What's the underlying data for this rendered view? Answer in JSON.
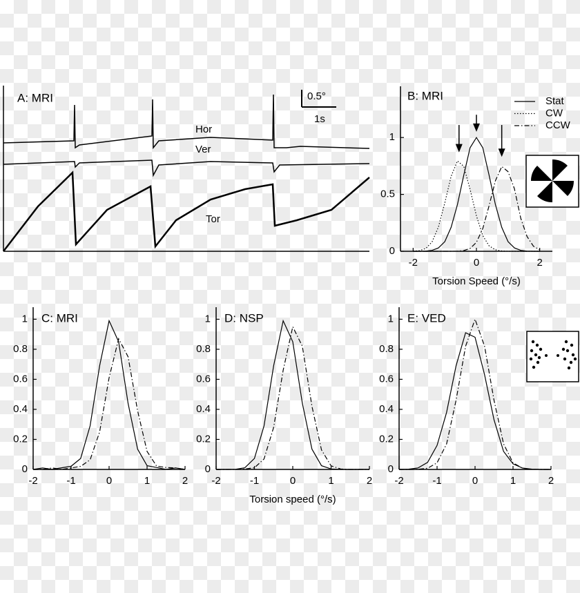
{
  "chart_data": [
    {
      "type": "line",
      "title": "A: MRI",
      "xlim": [
        0,
        10.6
      ],
      "ylim": [
        0,
        4.8
      ],
      "scale_bar": {
        "x": 1,
        "x_label": "1s",
        "y": 0.5,
        "y_label": "0.5°"
      },
      "series": [
        {
          "name": "Hor",
          "color": "#000",
          "dash": "solid",
          "linewidth": 1.5,
          "x": [
            0,
            2.04,
            2.06,
            2.08,
            2.2,
            4.3,
            4.32,
            4.34,
            4.5,
            6.0,
            7.8,
            7.82,
            7.84,
            8.2,
            8.6,
            10.6
          ],
          "values": [
            3.14,
            3.2,
            4.24,
            3.0,
            3.08,
            3.34,
            4.4,
            3.0,
            3.2,
            3.3,
            3.22,
            4.54,
            3.0,
            3.0,
            3.04,
            2.98
          ]
        },
        {
          "name": "Ver",
          "color": "#000",
          "dash": "solid",
          "linewidth": 1.5,
          "x": [
            0,
            2.06,
            2.08,
            2.2,
            4.3,
            4.34,
            4.5,
            6.0,
            7.8,
            7.84,
            8.0,
            10.6
          ],
          "values": [
            2.52,
            2.6,
            2.44,
            2.56,
            2.64,
            2.2,
            2.5,
            2.6,
            2.56,
            2.3,
            2.5,
            2.54
          ]
        },
        {
          "name": "Tor",
          "color": "#000",
          "dash": "solid",
          "linewidth": 2.5,
          "x": [
            0,
            1.0,
            2.0,
            2.1,
            3.0,
            4.26,
            4.4,
            5.0,
            6.0,
            7.0,
            7.8,
            7.86,
            8.5,
            9.5,
            10.6
          ],
          "values": [
            0,
            1.3,
            2.28,
            0.2,
            1.2,
            1.88,
            0.14,
            0.9,
            1.5,
            1.8,
            1.94,
            0.74,
            0.9,
            1.2,
            2.14
          ]
        }
      ]
    },
    {
      "type": "line",
      "title": "B: MRI",
      "xlabel": "Torsion Speed (°/s)",
      "xlim": [
        -2.4,
        2.4
      ],
      "ylim": [
        0,
        1.45
      ],
      "xticks": [
        -2,
        0,
        2
      ],
      "yticks": [
        0,
        0.5,
        1
      ],
      "legend": "top-right",
      "arrows": [
        {
          "x": -0.55,
          "y_top": 1.11,
          "y_tip": 0.87
        },
        {
          "x": 0,
          "y_top": 1.2,
          "y_tip": 1.05
        },
        {
          "x": 0.8,
          "y_top": 1.11,
          "y_tip": 0.83
        }
      ],
      "x": [
        -2,
        -1.8,
        -1.6,
        -1.4,
        -1.2,
        -1.0,
        -0.8,
        -0.6,
        -0.4,
        -0.2,
        0,
        0.2,
        0.4,
        0.6,
        0.8,
        1.0,
        1.2,
        1.4,
        1.6,
        1.8,
        2.0
      ],
      "series": [
        {
          "name": "Stat",
          "color": "#000",
          "dash": "solid",
          "linewidth": 1.2,
          "values": [
            0,
            0,
            0.002,
            0.008,
            0.03,
            0.085,
            0.21,
            0.41,
            0.67,
            0.91,
            1,
            0.91,
            0.67,
            0.41,
            0.21,
            0.085,
            0.03,
            0.008,
            0.002,
            0,
            0
          ]
        },
        {
          "name": "CW",
          "color": "#000",
          "dash": "dotted",
          "linewidth": 1.2,
          "values": [
            0.001,
            0.006,
            0.025,
            0.083,
            0.214,
            0.425,
            0.658,
            0.794,
            0.746,
            0.545,
            0.311,
            0.138,
            0.048,
            0.013,
            0.003,
            0,
            0,
            0,
            0,
            0,
            0
          ]
        },
        {
          "name": "CCW",
          "color": "#000",
          "dash": "dashdot",
          "linewidth": 1.2,
          "values": [
            0,
            0,
            0,
            0,
            0,
            0,
            0,
            0.001,
            0.006,
            0.024,
            0.078,
            0.2,
            0.4,
            0.62,
            0.745,
            0.7,
            0.55,
            0.29,
            0.13,
            0.045,
            0.012
          ]
        }
      ]
    },
    {
      "type": "line",
      "title": "C: MRI",
      "xlim": [
        -2,
        2
      ],
      "ylim": [
        0,
        1.08
      ],
      "xticks": [
        -2,
        -1,
        0,
        1,
        2
      ],
      "yticks": [
        0,
        0.2,
        0.4,
        0.6,
        0.8,
        1
      ],
      "x": [
        -2,
        -1.75,
        -1.5,
        -1.25,
        -1,
        -0.75,
        -0.5,
        -0.25,
        0,
        0.25,
        0.5,
        0.75,
        1,
        1.25,
        1.5,
        1.75,
        2
      ],
      "series": [
        {
          "color": "#000",
          "dash": "solid",
          "linewidth": 1.2,
          "values": [
            0,
            0.01,
            0,
            0.011,
            0.021,
            0.073,
            0.29,
            0.69,
            0.99,
            0.85,
            0.44,
            0.135,
            0.025,
            0.013,
            0,
            0.01,
            0
          ]
        },
        {
          "color": "#000",
          "dash": "dashdot",
          "linewidth": 1.2,
          "values": [
            0,
            0,
            0.01,
            0,
            0.01,
            0.02,
            0.064,
            0.25,
            0.61,
            0.87,
            0.75,
            0.39,
            0.12,
            0.022,
            0.013,
            0.01,
            0
          ]
        }
      ]
    },
    {
      "type": "line",
      "title": "D: NSP",
      "xlabel": "Torsion speed (°/s)",
      "xlim": [
        -2,
        2
      ],
      "ylim": [
        0,
        1.08
      ],
      "xticks": [
        -2,
        -1,
        0,
        1,
        2
      ],
      "yticks": [
        0,
        0.2,
        0.4,
        0.6,
        0.8,
        1
      ],
      "x": [
        -2,
        -1.75,
        -1.5,
        -1.25,
        -1,
        -0.75,
        -0.5,
        -0.25,
        0,
        0.25,
        0.5,
        0.75,
        1,
        1.25,
        1.5,
        1.75,
        2
      ],
      "series": [
        {
          "color": "#000",
          "dash": "solid",
          "linewidth": 1.2,
          "values": [
            0,
            0,
            0.001,
            0.011,
            0.073,
            0.29,
            0.69,
            0.99,
            0.85,
            0.44,
            0.135,
            0.025,
            0.003,
            0,
            0,
            0,
            0
          ]
        },
        {
          "color": "#000",
          "dash": "dashdot",
          "linewidth": 1.2,
          "values": [
            0,
            0,
            0,
            0.003,
            0.011,
            0.07,
            0.28,
            0.66,
            0.95,
            0.82,
            0.42,
            0.13,
            0.024,
            0.003,
            0,
            0,
            0
          ]
        }
      ]
    },
    {
      "type": "line",
      "title": "E: VED",
      "xlim": [
        -2,
        2
      ],
      "ylim": [
        0,
        1.08
      ],
      "xticks": [
        -2,
        -1,
        0,
        1,
        2
      ],
      "yticks": [
        0,
        0.2,
        0.4,
        0.6,
        0.8,
        1
      ],
      "x": [
        -2,
        -1.75,
        -1.5,
        -1.25,
        -1,
        -0.75,
        -0.5,
        -0.25,
        0,
        0.25,
        0.5,
        0.75,
        1,
        1.25,
        1.5,
        1.75,
        2
      ],
      "series": [
        {
          "color": "#000",
          "dash": "solid",
          "linewidth": 1.2,
          "values": [
            0,
            0.002,
            0.01,
            0.047,
            0.16,
            0.38,
            0.69,
            0.91,
            0.88,
            0.63,
            0.33,
            0.12,
            0.037,
            0.009,
            0.002,
            0,
            0
          ]
        },
        {
          "color": "#000",
          "dash": "dashdot",
          "linewidth": 1.2,
          "values": [
            0,
            0,
            0.001,
            0.008,
            0.044,
            0.17,
            0.46,
            0.82,
            1,
            0.82,
            0.46,
            0.17,
            0.044,
            0.008,
            0.001,
            0,
            0
          ]
        }
      ]
    }
  ]
}
